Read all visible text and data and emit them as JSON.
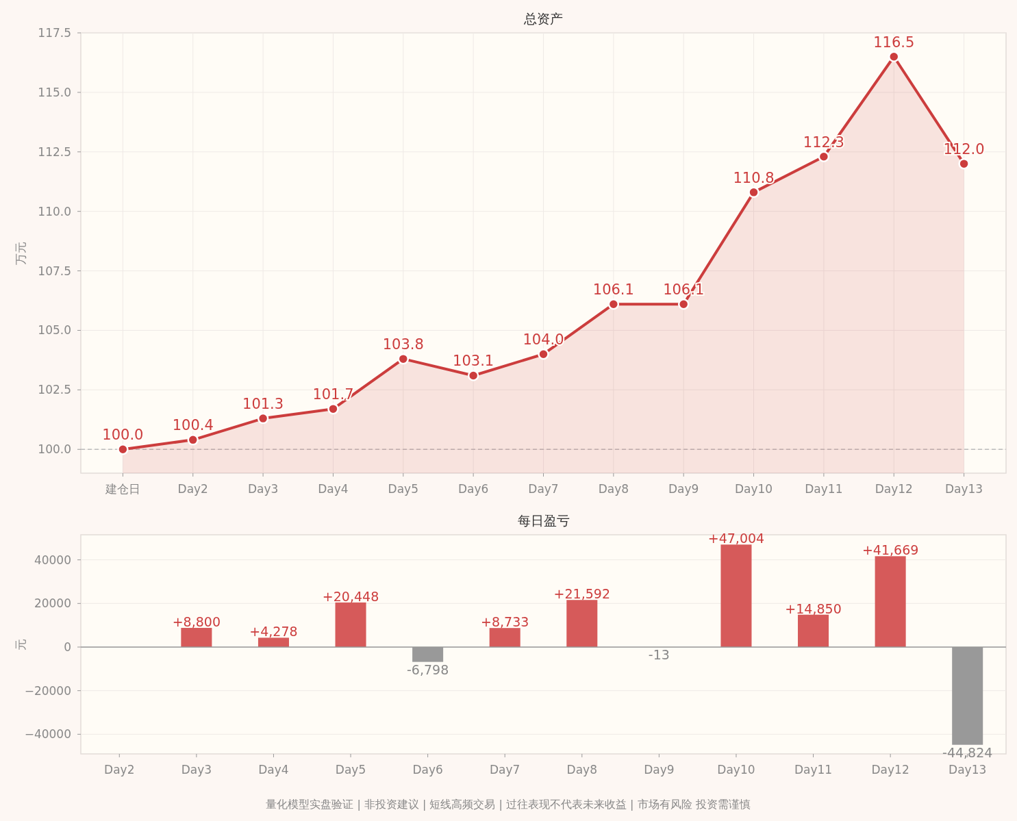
{
  "chart_data": [
    {
      "type": "area",
      "title": "总资产",
      "ylabel": "万元",
      "categories": [
        "建仓日",
        "Day2",
        "Day3",
        "Day4",
        "Day5",
        "Day6",
        "Day7",
        "Day8",
        "Day9",
        "Day10",
        "Day11",
        "Day12",
        "Day13"
      ],
      "series": [
        {
          "color": "#cc3d3d",
          "values": [
            100.0,
            100.4,
            101.3,
            101.7,
            103.8,
            103.1,
            104.0,
            106.1,
            106.1,
            110.8,
            112.3,
            116.5,
            112.0
          ],
          "value_labels": [
            "100.0",
            "100.4",
            "101.3",
            "101.7",
            "103.8",
            "103.1",
            "104.0",
            "106.1",
            "106.1",
            "110.8",
            "112.3",
            "116.5",
            "112.0"
          ]
        }
      ],
      "ylim": [
        99.0,
        117.5
      ],
      "yticks": [
        {
          "value": 100,
          "label": "100.0"
        },
        {
          "value": 102.5,
          "label": "102.5"
        },
        {
          "value": 105,
          "label": "105.0"
        },
        {
          "value": 107.5,
          "label": "107.5"
        },
        {
          "value": 110,
          "label": "110.0"
        },
        {
          "value": 112.5,
          "label": "112.5"
        },
        {
          "value": 115,
          "label": "115.0"
        },
        {
          "value": 117.5,
          "label": "117.5"
        }
      ],
      "ref_lines": [
        {
          "axis": "y",
          "value": 100,
          "color": "#bbbbbb",
          "line_style": "dashed"
        }
      ],
      "grid": true,
      "marker": "circle"
    },
    {
      "type": "bar",
      "title": "每日盈亏",
      "ylabel": "元",
      "categories": [
        "Day2",
        "Day3",
        "Day4",
        "Day5",
        "Day6",
        "Day7",
        "Day8",
        "Day9",
        "Day10",
        "Day11",
        "Day12",
        "Day13"
      ],
      "values": [
        null,
        8800,
        4278,
        20448,
        -6798,
        8733,
        21592,
        -13,
        47004,
        14850,
        41669,
        -44824
      ],
      "colors": [
        null,
        "#d65a5a",
        "#d65a5a",
        "#d65a5a",
        "#999999",
        "#d65a5a",
        "#d65a5a",
        "#999999",
        "#d65a5a",
        "#d65a5a",
        "#d65a5a",
        "#999999"
      ],
      "value_labels": [
        null,
        "+8,800",
        "+4,278",
        "+20,448",
        "-6,798",
        "+8,733",
        "+21,592",
        "-13",
        "+47,004",
        "+14,850",
        "+41,669",
        "-44,824"
      ],
      "ylim": [
        -49000,
        51500
      ],
      "yticks": [
        {
          "value": -40000,
          "label": "−40000"
        },
        {
          "value": -20000,
          "label": "−20000"
        },
        0,
        20000,
        40000
      ],
      "grid": true,
      "annotations": [
        "量化模型实盘验证 | 非投资建议 | 短线高频交易 | 过往表现不代表未来收益 | 市场有风险 投资需谨慎"
      ]
    }
  ]
}
